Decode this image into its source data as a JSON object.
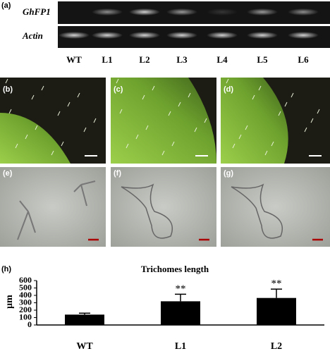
{
  "panel_a": {
    "label": "(a)",
    "rows": [
      "GhFP1",
      "Actin"
    ],
    "lanes": [
      "WT",
      "L1",
      "L2",
      "L3",
      "L4",
      "L5",
      "L6"
    ]
  },
  "panels": [
    "(b)",
    "(c)",
    "(d)",
    "(e)",
    "(f)",
    "(g)"
  ],
  "panel_h": {
    "label": "(h)"
  },
  "chart_data": {
    "type": "bar",
    "title": "Trichomes length",
    "y_label": "μm",
    "categories": [
      "WT",
      "L1",
      "L2"
    ],
    "values": [
      140,
      320,
      365
    ],
    "errors": [
      20,
      95,
      120
    ],
    "color": "#000000",
    "ylim": [
      0,
      600
    ],
    "yticks": [
      0,
      100,
      200,
      300,
      400,
      500,
      600
    ],
    "annotations": [
      {
        "category": "L1",
        "text": "**"
      },
      {
        "category": "L2",
        "text": "**"
      }
    ]
  }
}
